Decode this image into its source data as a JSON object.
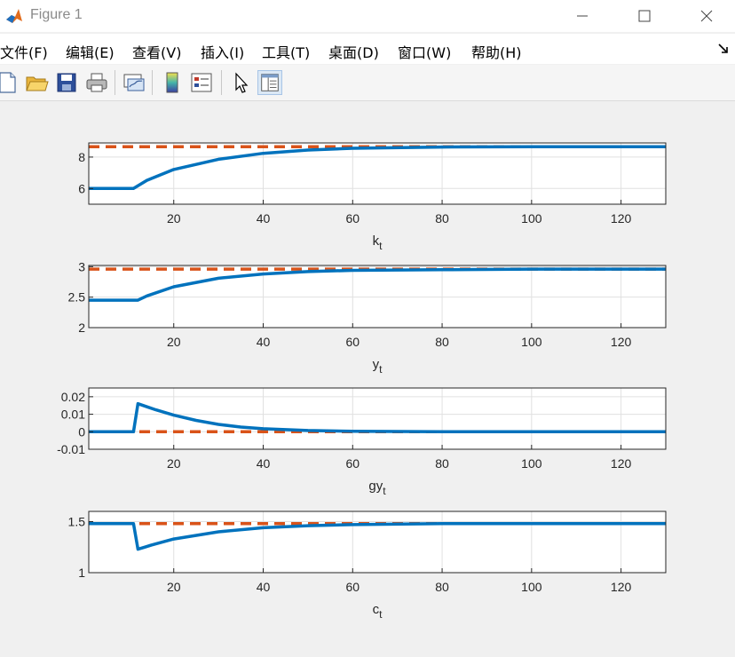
{
  "window": {
    "title": "Figure 1",
    "minimize_icon": "minimize-icon",
    "maximize_icon": "maximize-icon",
    "close_icon": "close-icon"
  },
  "menubar": {
    "items": [
      "文件(F)",
      "编辑(E)",
      "查看(V)",
      "插入(I)",
      "工具(T)",
      "桌面(D)",
      "窗口(W)",
      "帮助(H)"
    ],
    "dock_icon": "dock-arrow-icon"
  },
  "toolbar": {
    "buttons": [
      "new-figure-icon",
      "open-file-icon",
      "save-icon",
      "print-icon",
      "link-plot-icon",
      "insert-colorbar-icon",
      "insert-legend-icon",
      "edit-plot-arrow-icon",
      "property-inspector-icon"
    ]
  },
  "colors": {
    "series_line": "#0072BD",
    "steady_state_line": "#D95319",
    "axes_bg": "#ffffff",
    "grid": "#e0e0e0",
    "figure_bg": "#f0f0f0"
  },
  "chart_data": [
    {
      "type": "line",
      "xlabel": "k",
      "xlabel_subscript": "t",
      "xlim": [
        1,
        130
      ],
      "ylim": [
        5,
        8.9
      ],
      "xticks": [
        20,
        40,
        60,
        80,
        100,
        120
      ],
      "yticks": [
        6,
        8
      ],
      "grid": true,
      "series": [
        {
          "x": [
            1,
            11,
            14,
            20,
            30,
            40,
            50,
            60,
            80,
            100,
            130
          ],
          "values": [
            6,
            6,
            6.52,
            7.21,
            7.86,
            8.24,
            8.45,
            8.56,
            8.64,
            8.66,
            8.66
          ]
        },
        {
          "x": [
            1,
            130
          ],
          "values": [
            8.66,
            8.66
          ]
        }
      ]
    },
    {
      "type": "line",
      "xlabel": "y",
      "xlabel_subscript": "t",
      "xlim": [
        1,
        130
      ],
      "ylim": [
        2,
        3.02
      ],
      "xticks": [
        20,
        40,
        60,
        80,
        100,
        120
      ],
      "yticks": [
        2,
        2.5,
        3
      ],
      "grid": true,
      "series": [
        {
          "x": [
            1,
            12,
            14,
            20,
            30,
            40,
            50,
            60,
            80,
            100,
            130
          ],
          "values": [
            2.45,
            2.45,
            2.52,
            2.67,
            2.81,
            2.88,
            2.92,
            2.94,
            2.95,
            2.96,
            2.96
          ]
        },
        {
          "x": [
            1,
            130
          ],
          "values": [
            2.96,
            2.96
          ]
        }
      ]
    },
    {
      "type": "line",
      "xlabel": "gy",
      "xlabel_subscript": "t",
      "xlim": [
        1,
        130
      ],
      "ylim": [
        -0.01,
        0.025
      ],
      "xticks": [
        20,
        40,
        60,
        80,
        100,
        120
      ],
      "yticks": [
        -0.01,
        0,
        0.01,
        0.02
      ],
      "grid": true,
      "series": [
        {
          "x": [
            1,
            11,
            12,
            16,
            20,
            25,
            30,
            35,
            40,
            50,
            60,
            80,
            130
          ],
          "values": [
            0,
            0,
            0.016,
            0.0125,
            0.0095,
            0.0065,
            0.0042,
            0.0027,
            0.0017,
            0.0007,
            0.0003,
            0.0,
            0.0
          ]
        },
        {
          "x": [
            1,
            130
          ],
          "values": [
            0,
            0
          ]
        }
      ]
    },
    {
      "type": "line",
      "xlabel": "c",
      "xlabel_subscript": "t",
      "xlim": [
        1,
        130
      ],
      "ylim": [
        1,
        1.6
      ],
      "xticks": [
        20,
        40,
        60,
        80,
        100,
        120
      ],
      "yticks": [
        1,
        1.5
      ],
      "grid": true,
      "series": [
        {
          "x": [
            1,
            11,
            12,
            15,
            20,
            30,
            40,
            50,
            60,
            80,
            100,
            130
          ],
          "values": [
            1.48,
            1.48,
            1.23,
            1.27,
            1.33,
            1.4,
            1.44,
            1.46,
            1.47,
            1.48,
            1.48,
            1.48
          ]
        },
        {
          "x": [
            1,
            130
          ],
          "values": [
            1.48,
            1.48
          ]
        }
      ]
    }
  ]
}
